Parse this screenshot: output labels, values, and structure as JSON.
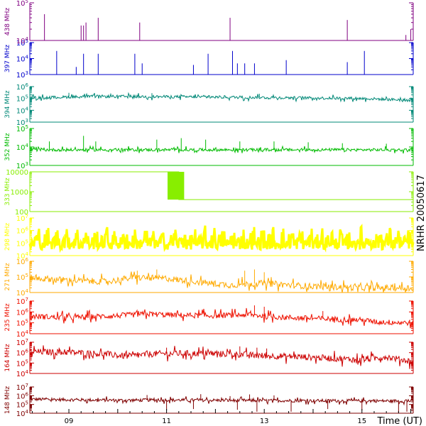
{
  "chart_data": {
    "type": "line",
    "title": "NRHR 20050617",
    "xlabel": "Time (UT)",
    "x_range_hours": [
      8.2,
      16.05
    ],
    "x_ticks": [
      "09",
      "11",
      "13",
      "15"
    ],
    "panels": [
      {
        "name": "148 MHz",
        "color": "#7f0000",
        "yscale": "log",
        "ylim": [
          10000,
          10000000
        ],
        "yticks": [
          {
            "v": 10000,
            "base": "10",
            "exp": "4"
          },
          {
            "v": 100000,
            "base": "10",
            "exp": "5"
          },
          {
            "v": 1000000,
            "base": "10",
            "exp": "6"
          },
          {
            "v": 10000000,
            "base": "10",
            "exp": "7"
          }
        ],
        "baseline": [
          [
            8.2,
            400000
          ],
          [
            9.0,
            350000
          ],
          [
            10.0,
            300000
          ],
          [
            11.0,
            330000
          ],
          [
            12.0,
            300000
          ],
          [
            13.0,
            280000
          ],
          [
            14.0,
            270000
          ],
          [
            15.0,
            260000
          ],
          [
            16.0,
            250000
          ]
        ],
        "noise": 0.18,
        "spikes": [
          [
            10.6,
            1200000
          ],
          [
            11.7,
            1500000
          ],
          [
            12.3,
            900000
          ],
          [
            12.7,
            1400000
          ],
          [
            13.2,
            1100000
          ]
        ],
        "dips": [
          [
            11.0,
            20000
          ],
          [
            11.55,
            30000
          ],
          [
            12.45,
            25000
          ],
          [
            12.85,
            15000
          ],
          [
            13.55,
            15000
          ],
          [
            14.3,
            30000
          ],
          [
            15.0,
            20000
          ],
          [
            15.75,
            12000
          ],
          [
            15.92,
            15000
          ]
        ]
      },
      {
        "name": "164 MHz",
        "color": "#cc0000",
        "yscale": "log",
        "ylim": [
          10000,
          10000000
        ],
        "yticks": [
          {
            "v": 10000,
            "base": "10",
            "exp": "4"
          },
          {
            "v": 100000,
            "base": "10",
            "exp": "5"
          },
          {
            "v": 1000000,
            "base": "10",
            "exp": "6"
          },
          {
            "v": 10000000,
            "base": "10",
            "exp": "7"
          }
        ],
        "baseline": [
          [
            8.2,
            1200000
          ],
          [
            8.9,
            1100000
          ],
          [
            9.6,
            800000
          ],
          [
            10.2,
            450000
          ],
          [
            10.8,
            800000
          ],
          [
            11.5,
            850000
          ],
          [
            12.3,
            750000
          ],
          [
            13.0,
            500000
          ],
          [
            13.6,
            420000
          ],
          [
            14.3,
            300000
          ],
          [
            15.0,
            200000
          ],
          [
            15.5,
            400000
          ],
          [
            16.05,
            130000
          ]
        ],
        "noise": 0.3,
        "spikes": [
          [
            8.8,
            3000000
          ],
          [
            11.0,
            3000000
          ],
          [
            12.5,
            4000000
          ],
          [
            12.85,
            3000000
          ],
          [
            13.05,
            2500000
          ]
        ],
        "dips": []
      },
      {
        "name": "235 MHz",
        "color": "#ee1100",
        "yscale": "log",
        "ylim": [
          10000,
          10000000
        ],
        "yticks": [
          {
            "v": 10000,
            "base": "10",
            "exp": "4"
          },
          {
            "v": 100000,
            "base": "10",
            "exp": "5"
          },
          {
            "v": 1000000,
            "base": "10",
            "exp": "6"
          },
          {
            "v": 10000000,
            "base": "10",
            "exp": "7"
          }
        ],
        "baseline": [
          [
            8.2,
            400000
          ],
          [
            9.0,
            300000
          ],
          [
            10.0,
            450000
          ],
          [
            10.6,
            650000
          ],
          [
            11.2,
            500000
          ],
          [
            12.0,
            450000
          ],
          [
            12.7,
            550000
          ],
          [
            13.2,
            350000
          ],
          [
            14.0,
            250000
          ],
          [
            15.0,
            180000
          ],
          [
            15.3,
            120000
          ],
          [
            16.05,
            100000
          ]
        ],
        "noise": 0.25,
        "spikes": [
          [
            12.8,
            4000000
          ],
          [
            13.0,
            3000000
          ],
          [
            14.2,
            1200000
          ]
        ],
        "dips": []
      },
      {
        "name": "271 MHz",
        "color": "#ffaa00",
        "yscale": "log",
        "ylim": [
          10000,
          1000000
        ],
        "yticks": [
          {
            "v": 10000,
            "base": "10",
            "exp": "4"
          },
          {
            "v": 100000,
            "base": "10",
            "exp": "5"
          },
          {
            "v": 1000000,
            "base": "10",
            "exp": "6"
          }
        ],
        "baseline": [
          [
            8.2,
            90000
          ],
          [
            9.0,
            60000
          ],
          [
            9.8,
            50000
          ],
          [
            10.3,
            90000
          ],
          [
            11.0,
            80000
          ],
          [
            11.7,
            45000
          ],
          [
            12.3,
            30000
          ],
          [
            13.0,
            40000
          ],
          [
            13.5,
            30000
          ],
          [
            14.0,
            25000
          ],
          [
            15.0,
            20000
          ],
          [
            16.05,
            20000
          ]
        ],
        "noise": 0.2,
        "spikes": [
          [
            10.4,
            250000
          ],
          [
            10.8,
            300000
          ],
          [
            12.6,
            250000
          ],
          [
            12.8,
            300000
          ],
          [
            13.0,
            200000
          ]
        ],
        "dips": []
      },
      {
        "name": "298 MHz",
        "color": "#ffff00",
        "yscale": "log",
        "ylim": [
          10000,
          10000000
        ],
        "yticks": [
          {
            "v": 10000,
            "base": "10",
            "exp": "4"
          },
          {
            "v": 100000,
            "base": "10",
            "exp": "5"
          },
          {
            "v": 1000000,
            "base": "10",
            "exp": "6"
          },
          {
            "v": 10000000,
            "base": "10",
            "exp": "7"
          }
        ],
        "baseline": [
          [
            8.2,
            30000
          ],
          [
            16.05,
            30000
          ]
        ],
        "noise": 0.05,
        "sawtooth": {
          "period_hours": 0.2,
          "low": 30000,
          "high": 3000000
        },
        "spikes": [],
        "dips": []
      },
      {
        "name": "333 MHz",
        "color": "#88ee00",
        "yscale": "log",
        "ylim": [
          100,
          10000
        ],
        "yticks": [
          {
            "v": 100,
            "base": "100",
            "exp": ""
          },
          {
            "v": 1000,
            "base": "1000",
            "exp": ""
          },
          {
            "v": 10000,
            "base": "10000",
            "exp": ""
          }
        ],
        "steps": [
          [
            8.2,
            10000
          ],
          [
            11.25,
            10000
          ],
          [
            11.25,
            400
          ],
          [
            16.05,
            400
          ]
        ],
        "block": [
          11.02,
          11.36
        ],
        "noise": 0,
        "spikes": [],
        "dips": []
      },
      {
        "name": "352 MHz",
        "color": "#00bb00",
        "yscale": "log",
        "ylim": [
          1000,
          100000
        ],
        "yticks": [
          {
            "v": 1000,
            "base": "10",
            "exp": "3"
          },
          {
            "v": 10000,
            "base": "10",
            "exp": "4"
          },
          {
            "v": 100000,
            "base": "10",
            "exp": "5"
          }
        ],
        "baseline": [
          [
            8.2,
            7000
          ],
          [
            16.05,
            7000
          ]
        ],
        "noise": 0.08,
        "spikes": [
          [
            8.6,
            20000
          ],
          [
            9.3,
            40000
          ],
          [
            9.55,
            20000
          ],
          [
            10.8,
            25000
          ],
          [
            11.3,
            30000
          ],
          [
            11.8,
            25000
          ],
          [
            12.5,
            20000
          ],
          [
            13.2,
            20000
          ],
          [
            13.9,
            18000
          ],
          [
            14.6,
            16000
          ],
          [
            15.5,
            15000
          ]
        ],
        "dips": []
      },
      {
        "name": "394 MHz",
        "color": "#008877",
        "yscale": "log",
        "ylim": [
          1000,
          1000000
        ],
        "yticks": [
          {
            "v": 1000,
            "base": "10",
            "exp": "3"
          },
          {
            "v": 10000,
            "base": "10",
            "exp": "4"
          },
          {
            "v": 100000,
            "base": "10",
            "exp": "5"
          },
          {
            "v": 1000000,
            "base": "10",
            "exp": "6"
          }
        ],
        "baseline": [
          [
            8.2,
            110000
          ],
          [
            9.5,
            150000
          ],
          [
            11.0,
            140000
          ],
          [
            12.0,
            130000
          ],
          [
            13.0,
            120000
          ],
          [
            14.0,
            110000
          ],
          [
            15.0,
            100000
          ],
          [
            16.05,
            70000
          ]
        ],
        "noise": 0.12,
        "spikes": [
          [
            9.0,
            300000
          ],
          [
            10.7,
            280000
          ],
          [
            12.9,
            250000
          ]
        ],
        "dips": []
      },
      {
        "name": "397 MHz",
        "color": "#0000cc",
        "yscale": "log",
        "ylim": [
          1000,
          100000
        ],
        "yticks": [
          {
            "v": 1000,
            "base": "10",
            "exp": "3"
          },
          {
            "v": 10000,
            "base": "10",
            "exp": "4"
          },
          {
            "v": 100000,
            "base": "10",
            "exp": "5"
          }
        ],
        "baseline": [
          [
            8.2,
            1000
          ],
          [
            16.05,
            1000
          ]
        ],
        "noise": 0,
        "spikes": [
          [
            8.75,
            30000
          ],
          [
            9.15,
            3000
          ],
          [
            9.3,
            20000
          ],
          [
            9.6,
            20000
          ],
          [
            10.35,
            20000
          ],
          [
            10.5,
            5000
          ],
          [
            11.55,
            4000
          ],
          [
            11.85,
            20000
          ],
          [
            12.35,
            30000
          ],
          [
            12.45,
            5000
          ],
          [
            12.6,
            5000
          ],
          [
            12.8,
            5000
          ],
          [
            13.45,
            8000
          ],
          [
            14.7,
            6000
          ],
          [
            15.05,
            30000
          ]
        ],
        "dips": []
      },
      {
        "name": "438 MHz",
        "color": "#800080",
        "yscale": "log",
        "ylim": [
          10000,
          100000
        ],
        "yticks": [
          {
            "v": 10000,
            "base": "10",
            "exp": "4"
          },
          {
            "v": 100000,
            "base": "10",
            "exp": "5"
          }
        ],
        "baseline": [
          [
            8.2,
            10000
          ],
          [
            16.05,
            10000
          ]
        ],
        "noise": 0,
        "spikes": [
          [
            8.5,
            50000
          ],
          [
            9.25,
            25000
          ],
          [
            9.3,
            25000
          ],
          [
            9.35,
            30000
          ],
          [
            9.6,
            40000
          ],
          [
            10.45,
            30000
          ],
          [
            12.3,
            40000
          ],
          [
            14.7,
            35000
          ],
          [
            15.9,
            14000
          ],
          [
            16.0,
            20000
          ]
        ],
        "dips": []
      }
    ]
  }
}
